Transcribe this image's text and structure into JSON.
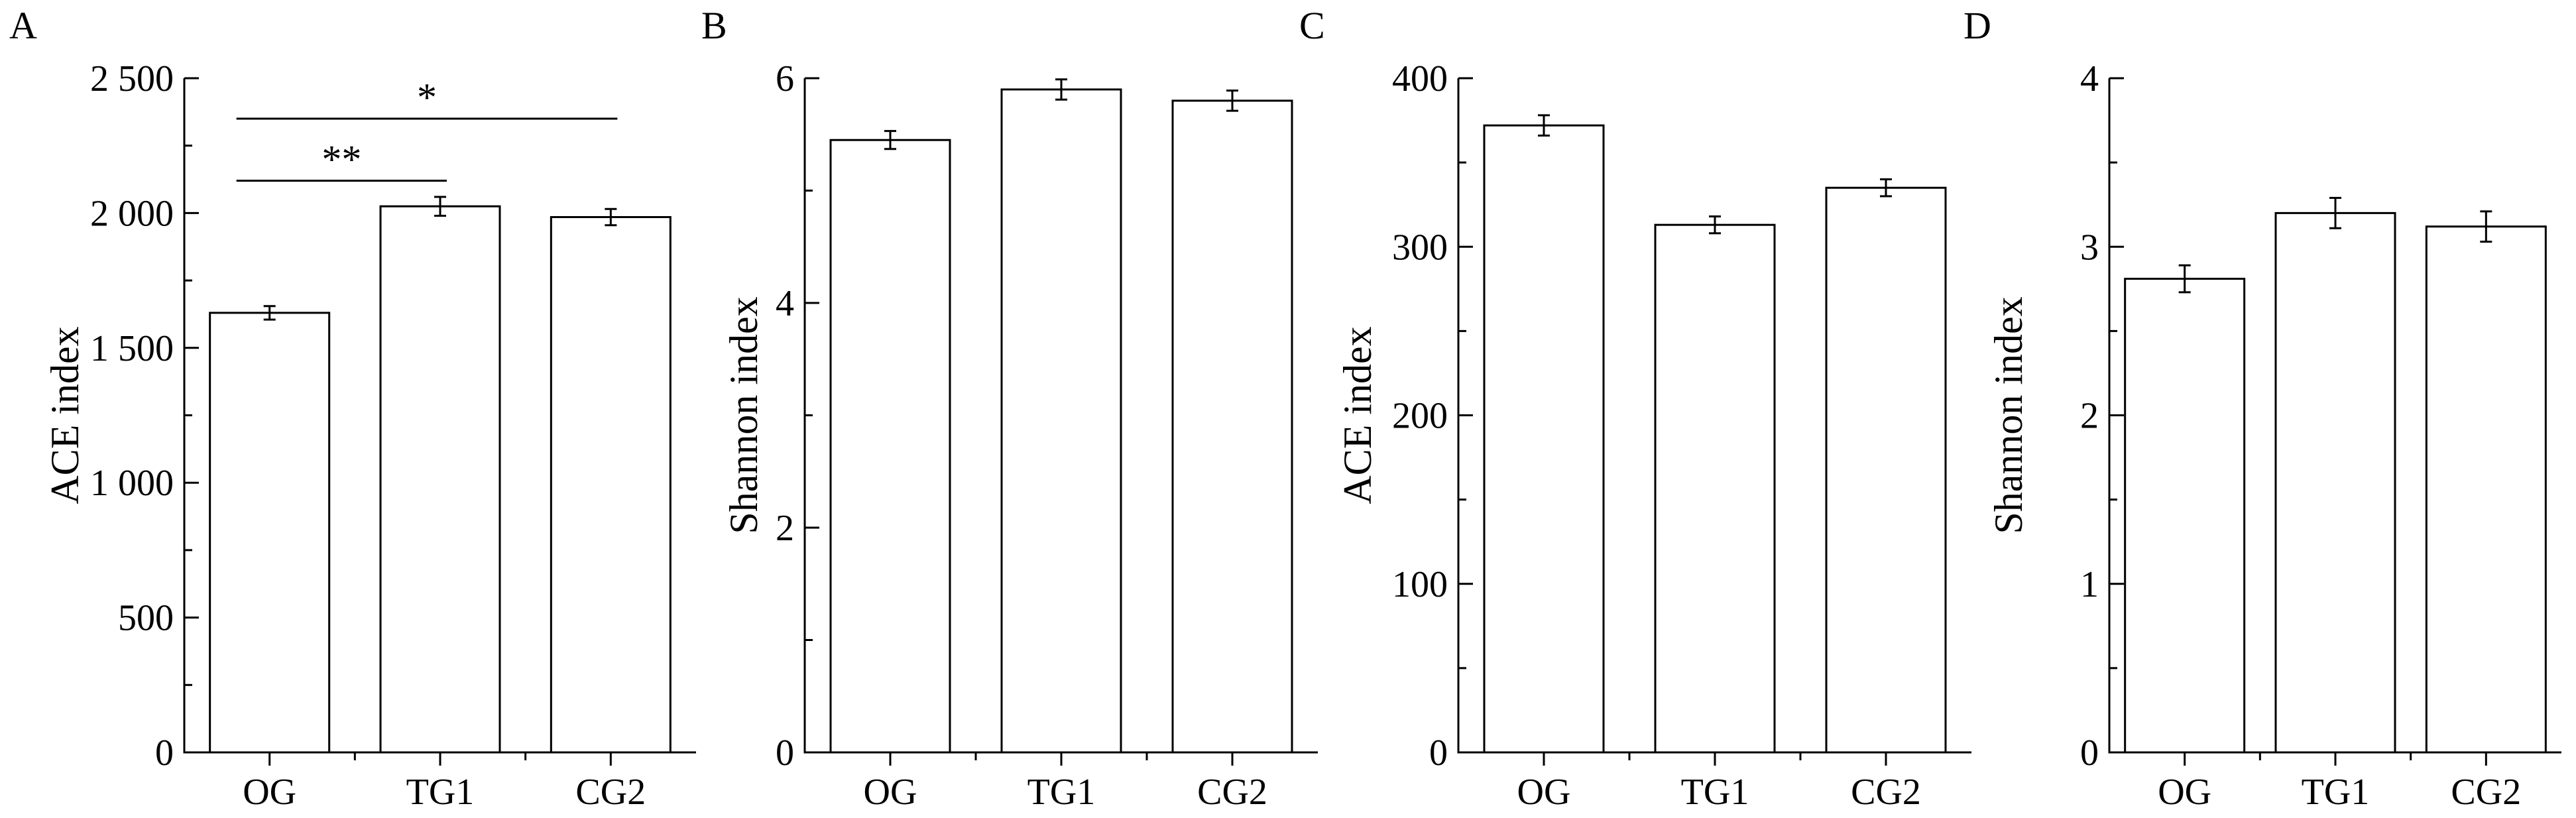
{
  "chart_data": [
    {
      "panel": "A",
      "type": "bar",
      "categories": [
        "OG",
        "TG1",
        "CG2"
      ],
      "values": [
        1630,
        2025,
        1985
      ],
      "errors": [
        25,
        35,
        30
      ],
      "ylabel": "ACE index",
      "ylim": [
        0,
        2500
      ],
      "yticks": [
        0,
        500,
        1000,
        1500,
        2000,
        2500
      ],
      "ytick_labels": [
        "0",
        "500",
        "1 000",
        "1 500",
        "2 000",
        "2 500"
      ],
      "significance": [
        {
          "from": "OG",
          "to": "TG1",
          "label": "**",
          "y": 2120
        },
        {
          "from": "OG",
          "to": "CG2",
          "label": "*",
          "y": 2350
        }
      ],
      "grid": false
    },
    {
      "panel": "B",
      "type": "bar",
      "categories": [
        "OG",
        "TG1",
        "CG2"
      ],
      "values": [
        5.45,
        5.9,
        5.8
      ],
      "errors": [
        0.08,
        0.09,
        0.09
      ],
      "ylabel": "Shannon index",
      "ylim": [
        0,
        6
      ],
      "yticks": [
        0,
        2,
        4,
        6
      ],
      "ytick_labels": [
        "0",
        "2",
        "4",
        "6"
      ],
      "significance": [],
      "grid": false
    },
    {
      "panel": "C",
      "type": "bar",
      "categories": [
        "OG",
        "TG1",
        "CG2"
      ],
      "values": [
        372,
        313,
        335
      ],
      "errors": [
        6,
        5,
        5
      ],
      "ylabel": "ACE index",
      "ylim": [
        0,
        400
      ],
      "yticks": [
        0,
        100,
        200,
        300,
        400
      ],
      "ytick_labels": [
        "0",
        "100",
        "200",
        "300",
        "400"
      ],
      "significance": [],
      "grid": false
    },
    {
      "panel": "D",
      "type": "bar",
      "categories": [
        "OG",
        "TG1",
        "CG2"
      ],
      "values": [
        2.81,
        3.2,
        3.12
      ],
      "errors": [
        0.08,
        0.09,
        0.09
      ],
      "ylabel": "Shannon index",
      "ylim": [
        0,
        4
      ],
      "yticks": [
        0,
        1,
        2,
        3,
        4
      ],
      "ytick_labels": [
        "0",
        "1",
        "2",
        "3",
        "4"
      ],
      "significance": [],
      "grid": false
    }
  ]
}
